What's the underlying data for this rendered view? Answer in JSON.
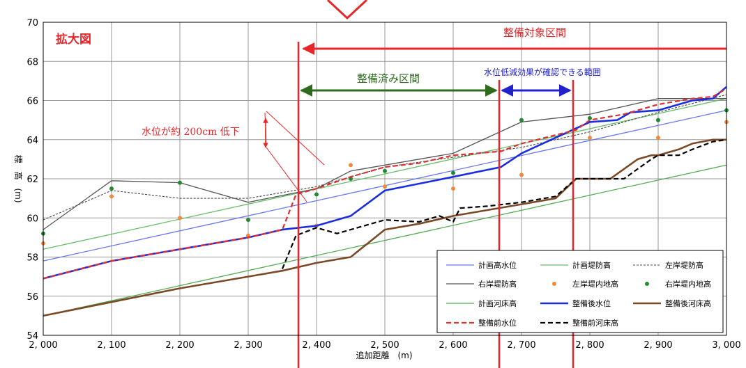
{
  "chart_data": {
    "type": "line",
    "title": "拡大図",
    "xlabel": "追加距離　(m)",
    "ylabel": "標　高　(m)",
    "xlim": [
      2000,
      3000
    ],
    "ylim": [
      54,
      70
    ],
    "x_ticks": [
      2000,
      2100,
      2200,
      2300,
      2400,
      2500,
      2600,
      2700,
      2800,
      2900,
      3000
    ],
    "x_tick_labels": [
      "2, 000",
      "2, 100",
      "2, 200",
      "2, 300",
      "2, 400",
      "2, 500",
      "2, 600",
      "2, 700",
      "2, 800",
      "2, 900",
      "3, 000"
    ],
    "y_ticks": [
      54,
      56,
      58,
      60,
      62,
      64,
      66,
      68,
      70
    ],
    "grid": true,
    "legend_position": "bottom-right",
    "colors": {
      "plan_water": "#6677ee",
      "plan_levee": "#66bb66",
      "left_levee": "#444444",
      "right_levee": "#555555",
      "left_inland": "#f08a3c",
      "right_inland": "#228833",
      "plan_bed": "#55aa55",
      "after_water": "#1a2ee0",
      "after_bed": "#7a4a26",
      "before_water": "#e03030",
      "before_bed": "#000000",
      "annotation_red": "#e8262a",
      "annotation_green": "#2e6b1c",
      "annotation_blue": "#2222cc"
    },
    "series": [
      {
        "name": "計画高水位",
        "style": "line",
        "x": [
          2000,
          3000
        ],
        "y": [
          57.8,
          65.5
        ]
      },
      {
        "name": "計画堤防高",
        "style": "line",
        "x": [
          2000,
          3000
        ],
        "y": [
          58.4,
          66.1
        ]
      },
      {
        "name": "左岸堤防高",
        "style": "dotted",
        "x": [
          2000,
          2100,
          2200,
          2300,
          2400,
          2500,
          2600,
          2700,
          2800,
          2900,
          3000
        ],
        "y": [
          59.9,
          61.4,
          61.0,
          61.0,
          61.6,
          62.6,
          63.1,
          63.6,
          64.4,
          65.4,
          66.3
        ]
      },
      {
        "name": "右岸堤防高",
        "style": "line",
        "x": [
          2000,
          2100,
          2200,
          2300,
          2400,
          2450,
          2500,
          2600,
          2700,
          2800,
          2900,
          3000
        ],
        "y": [
          59.4,
          61.9,
          61.8,
          60.8,
          61.5,
          62.4,
          62.7,
          63.3,
          64.9,
          65.3,
          66.1,
          66.1
        ]
      },
      {
        "name": "左岸堤内地高",
        "style": "markers",
        "x": [
          2000,
          2100,
          2200,
          2300,
          2400,
          2450,
          2500,
          2600,
          2700,
          2800,
          2900,
          3000
        ],
        "y": [
          58.7,
          61.1,
          60.0,
          59.1,
          59.6,
          62.7,
          61.6,
          61.5,
          62.2,
          64.1,
          64.1,
          64.9
        ]
      },
      {
        "name": "右岸堤内地高",
        "style": "markers",
        "x": [
          2000,
          2100,
          2200,
          2300,
          2400,
          2450,
          2500,
          2600,
          2700,
          2800,
          2900,
          3000
        ],
        "y": [
          59.2,
          61.5,
          61.8,
          59.9,
          61.2,
          62.0,
          62.4,
          62.3,
          65.0,
          65.1,
          65.0,
          65.5
        ]
      },
      {
        "name": "計画河床高",
        "style": "line",
        "x": [
          2000,
          3000
        ],
        "y": [
          55.0,
          62.7
        ]
      },
      {
        "name": "整備後水位",
        "style": "thick",
        "x": [
          2000,
          2100,
          2200,
          2300,
          2350,
          2400,
          2450,
          2500,
          2600,
          2670,
          2700,
          2800,
          2840,
          2860,
          2900,
          2950,
          2980,
          3000
        ],
        "y": [
          56.9,
          57.8,
          58.4,
          59.0,
          59.4,
          59.6,
          60.1,
          61.4,
          62.1,
          62.6,
          63.3,
          64.9,
          65.0,
          65.4,
          65.5,
          66.0,
          66.1,
          66.7
        ]
      },
      {
        "name": "整備後河床高",
        "style": "thick",
        "x": [
          2000,
          2100,
          2200,
          2300,
          2350,
          2400,
          2450,
          2500,
          2550,
          2600,
          2650,
          2700,
          2750,
          2780,
          2800,
          2830,
          2850,
          2870,
          2890,
          2900,
          2930,
          2950,
          2980,
          3000
        ],
        "y": [
          55.0,
          55.7,
          56.4,
          57.0,
          57.3,
          57.7,
          58.0,
          59.4,
          59.7,
          60.1,
          60.4,
          60.7,
          61.0,
          62.0,
          62.0,
          62.0,
          62.5,
          63.0,
          63.2,
          63.2,
          63.5,
          63.8,
          64.0,
          64.0
        ]
      },
      {
        "name": "整備前水位",
        "style": "dashed",
        "x": [
          2000,
          2100,
          2200,
          2300,
          2350,
          2370,
          2400,
          2450,
          2500,
          2550,
          2600,
          2670,
          2700,
          2780,
          2800,
          2850,
          2900,
          2950,
          2980,
          3000
        ],
        "y": [
          56.9,
          57.8,
          58.4,
          59.0,
          59.4,
          61.2,
          61.5,
          62.1,
          62.6,
          62.8,
          63.2,
          63.4,
          63.8,
          64.5,
          65.0,
          65.3,
          65.8,
          66.1,
          66.2,
          66.6
        ]
      },
      {
        "name": "整備前河床高",
        "style": "dashed",
        "x": [
          2350,
          2370,
          2400,
          2430,
          2450,
          2500,
          2550,
          2580,
          2600,
          2610,
          2650,
          2700,
          2750,
          2780,
          2800,
          2850,
          2870,
          2890,
          2900,
          2930,
          2950,
          2980,
          3000
        ],
        "y": [
          57.4,
          59.1,
          59.5,
          59.2,
          59.4,
          59.9,
          59.8,
          60.1,
          59.8,
          60.5,
          60.6,
          60.8,
          61.1,
          62.0,
          62.0,
          62.0,
          62.5,
          63.0,
          63.2,
          63.2,
          63.5,
          63.9,
          64.0
        ]
      }
    ],
    "annotations": {
      "target_section": "整備対象区間",
      "completed_section": "整備済み区間",
      "effect_range": "水位低減効果が確認できる範囲",
      "drop_note": "水位が約 200cm 低下"
    }
  }
}
